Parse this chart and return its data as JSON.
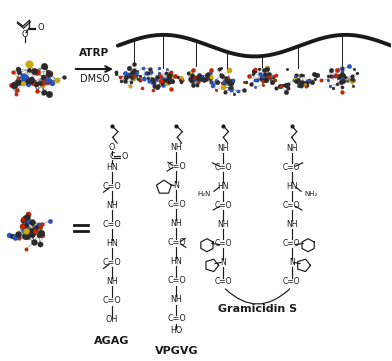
{
  "background_color": "#ffffff",
  "figure_width": 3.92,
  "figure_height": 3.61,
  "dpi": 100,
  "top_label_atrp": "ATRP",
  "top_label_dmso": "DMSO",
  "bottom_labels": [
    "AGAG",
    "VPGVG",
    "Gramicidin S"
  ],
  "black": "#1a1a1a",
  "atom_colors": {
    "C": "#2a2a2a",
    "N": "#2255cc",
    "O": "#cc2200",
    "S": "#ccaa00",
    "H": "#888888"
  }
}
